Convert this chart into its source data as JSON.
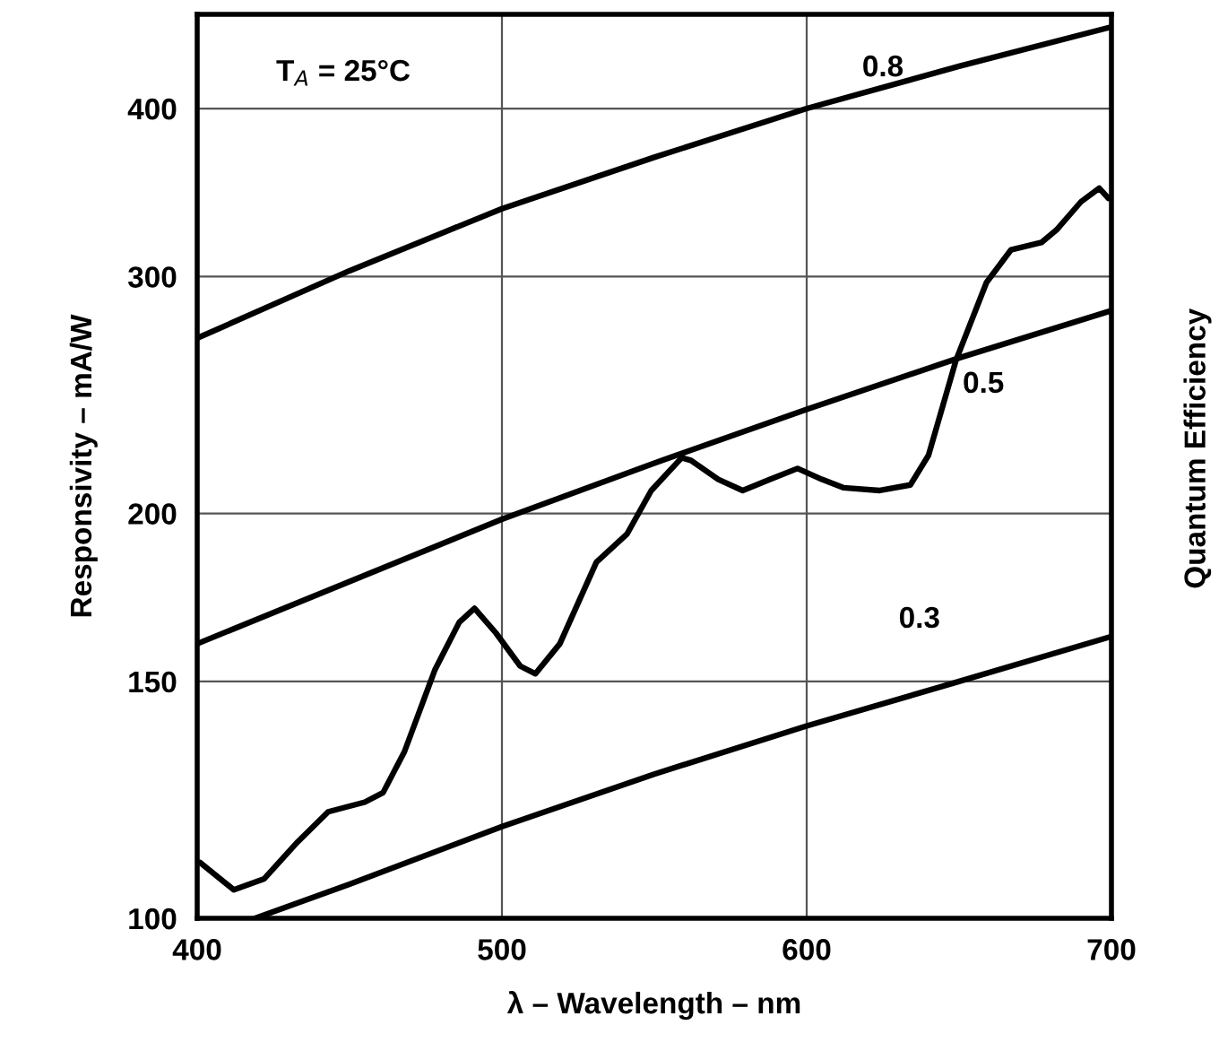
{
  "chart_data": {
    "type": "line",
    "xlabel": "λ – Wavelength – nm",
    "ylabel": "Responsivity – mA/W",
    "y2label": "Quantum Efficiency",
    "log": "y",
    "grid": true,
    "legend": false,
    "marker": "none",
    "line_style": "solid",
    "xlim": [
      400,
      700
    ],
    "xticks": [
      400,
      500,
      600,
      700
    ],
    "ylim": [
      100,
      470
    ],
    "yticks": [
      100,
      150,
      200,
      300,
      400
    ],
    "series": [
      {
        "name": "0.8",
        "color": "#000000",
        "x": [
          400,
          450,
          500,
          550,
          600,
          650,
          700
        ],
        "values": [
          270,
          303,
          337,
          368,
          400,
          430,
          460
        ]
      },
      {
        "name": "0.5",
        "color": "#000000",
        "x": [
          400,
          450,
          500,
          550,
          600,
          650,
          700
        ],
        "values": [
          160,
          178,
          198,
          218,
          239,
          261,
          283
        ]
      },
      {
        "name": "0.3",
        "color": "#000000",
        "x": [
          419,
          450,
          500,
          550,
          600,
          650,
          700
        ],
        "values": [
          100,
          106,
          117,
          128,
          139,
          150,
          162
        ]
      },
      {
        "color": "#000000",
        "x": [
          401,
          412,
          422,
          433,
          443,
          455,
          461,
          468,
          478,
          486,
          491,
          498,
          506,
          511,
          519,
          531,
          541,
          549,
          559,
          562,
          571,
          579,
          588,
          597,
          605,
          612,
          624,
          634,
          640,
          649,
          659,
          667,
          677,
          682,
          690,
          696,
          699
        ],
        "values": [
          110,
          105,
          107,
          114,
          120,
          122,
          124,
          133,
          153,
          166,
          170,
          163,
          154,
          152,
          160,
          184,
          193,
          208,
          220,
          219,
          212,
          208,
          212,
          216,
          212,
          209,
          208,
          210,
          221,
          260,
          297,
          314,
          318,
          325,
          341,
          349,
          343
        ]
      }
    ],
    "annotations": [
      "T$_{A}$ = 25°C"
    ]
  }
}
